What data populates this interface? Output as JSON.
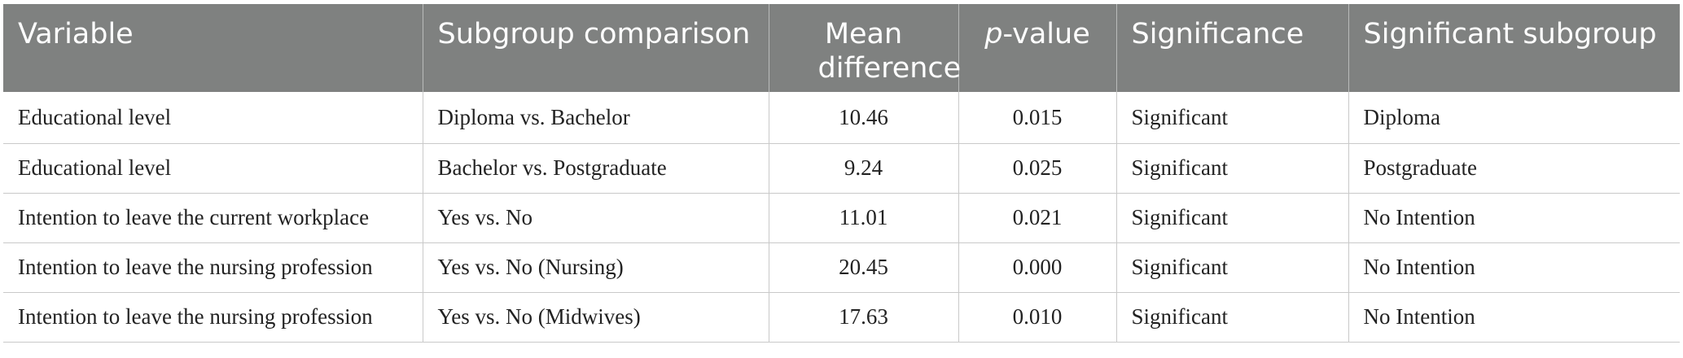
{
  "table": {
    "headers": {
      "variable": "Variable",
      "subgroup_comparison": "Subgroup comparison",
      "mean_difference": "Mean difference",
      "p_value_italic": "p",
      "p_value_rest": "-value",
      "significance": "Significance",
      "significant_subgroup": "Significant subgroup"
    },
    "rows": [
      {
        "variable": "Educational level",
        "subgroup_comparison": "Diploma vs. Bachelor",
        "mean_difference": "10.46",
        "p_value": "0.015",
        "significance": "Significant",
        "significant_subgroup": "Diploma"
      },
      {
        "variable": "Educational level",
        "subgroup_comparison": "Bachelor vs. Postgraduate",
        "mean_difference": "9.24",
        "p_value": "0.025",
        "significance": "Significant",
        "significant_subgroup": "Postgraduate"
      },
      {
        "variable": "Intention to leave the current workplace",
        "subgroup_comparison": "Yes vs. No",
        "mean_difference": "11.01",
        "p_value": "0.021",
        "significance": "Significant",
        "significant_subgroup": "No Intention"
      },
      {
        "variable": "Intention to leave the nursing profession",
        "subgroup_comparison": "Yes vs. No (Nursing)",
        "mean_difference": "20.45",
        "p_value": "0.000",
        "significance": "Significant",
        "significant_subgroup": "No Intention"
      },
      {
        "variable": "Intention to leave the nursing profession",
        "subgroup_comparison": "Yes vs. No (Midwives)",
        "mean_difference": "17.63",
        "p_value": "0.010",
        "significance": "Significant",
        "significant_subgroup": "No Intention"
      }
    ]
  }
}
